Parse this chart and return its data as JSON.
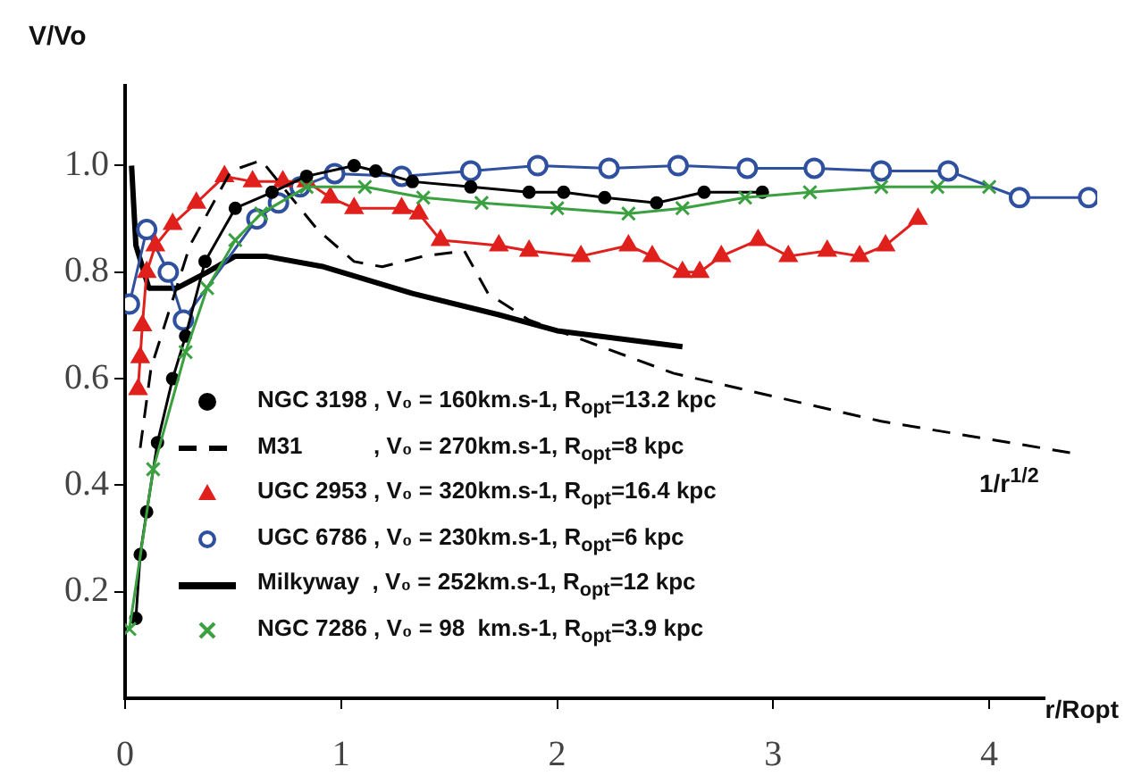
{
  "chart_data": {
    "type": "line",
    "xlabel": "r/Ropt",
    "ylabel": "V/Vo",
    "xlim": [
      0,
      4.5
    ],
    "xticks": [
      0,
      1,
      2,
      3,
      4
    ],
    "ylim": [
      0,
      1.15
    ],
    "yticks": [
      {
        "value": 0.2,
        "label": "0.2"
      },
      {
        "value": 0.4,
        "label": "0.4"
      },
      {
        "value": 0.6,
        "label": "0.6"
      },
      {
        "value": 0.8,
        "label": "0.8"
      },
      {
        "value": 1.0,
        "label": "1.0"
      }
    ],
    "grid": false,
    "legend": "left",
    "annotations": [
      "1/r$^{1/2}$"
    ],
    "series": [
      {
        "name": "NGC 3198 , V₀ = 160km.s-1, R$_{opt}$=13.2 kpc",
        "color": "#000000",
        "marker": "circle",
        "line_style": "solid",
        "x": [
          0.05,
          0.07,
          0.1,
          0.15,
          0.22,
          0.28,
          0.37,
          0.51,
          0.68,
          0.84,
          1.06,
          1.16,
          1.33,
          1.6,
          1.87,
          2.03,
          2.22,
          2.46,
          2.68,
          2.95
        ],
        "values": [
          0.15,
          0.27,
          0.35,
          0.48,
          0.6,
          0.68,
          0.82,
          0.92,
          0.95,
          0.98,
          1.0,
          0.99,
          0.97,
          0.96,
          0.95,
          0.95,
          0.94,
          0.93,
          0.95,
          0.95
        ]
      },
      {
        "name": "M31           , V₀ = 270km.s-1, R$_{opt}$=8 kpc",
        "color": "#000000",
        "marker": "none",
        "line_style": "dashed",
        "x": [
          0.07,
          0.12,
          0.3,
          0.49,
          0.63,
          0.89,
          1.06,
          1.19,
          1.38,
          1.57,
          1.68,
          1.87,
          2.54,
          3.5,
          4.39
        ],
        "values": [
          0.47,
          0.62,
          0.85,
          0.99,
          1.01,
          0.88,
          0.82,
          0.81,
          0.83,
          0.84,
          0.76,
          0.71,
          0.61,
          0.52,
          0.46
        ]
      },
      {
        "name": "UGC 2953 , V₀ = 320km.s-1, R$_{opt}$=16.4 kpc",
        "color": "#e0201c",
        "marker": "triangle",
        "line_style": "solid",
        "x": [
          0.06,
          0.07,
          0.08,
          0.1,
          0.14,
          0.22,
          0.33,
          0.46,
          0.59,
          0.73,
          0.84,
          0.95,
          1.06,
          1.28,
          1.36,
          1.46,
          1.73,
          1.87,
          2.11,
          2.33,
          2.44,
          2.58,
          2.66,
          2.76,
          2.93,
          3.07,
          3.25,
          3.4,
          3.52,
          3.67
        ],
        "values": [
          0.58,
          0.64,
          0.7,
          0.8,
          0.85,
          0.89,
          0.93,
          0.98,
          0.97,
          0.97,
          0.97,
          0.94,
          0.92,
          0.92,
          0.91,
          0.86,
          0.85,
          0.84,
          0.83,
          0.85,
          0.83,
          0.8,
          0.8,
          0.83,
          0.86,
          0.83,
          0.84,
          0.83,
          0.85,
          0.9
        ]
      },
      {
        "name": "UGC 6786 , V₀ = 230km.s-1, R$_{opt}$=6 kpc",
        "color": "#2f4f9f",
        "marker": "circle",
        "line_style": "solid",
        "x": [
          0.02,
          0.1,
          0.2,
          0.27,
          0.61,
          0.71,
          0.81,
          0.97,
          1.28,
          1.6,
          1.91,
          2.24,
          2.56,
          2.88,
          3.19,
          3.5,
          3.81,
          4.14,
          4.46
        ],
        "values": [
          0.74,
          0.88,
          0.8,
          0.71,
          0.9,
          0.93,
          0.96,
          0.985,
          0.98,
          0.99,
          1.0,
          0.995,
          1.0,
          0.995,
          0.995,
          0.99,
          0.99,
          0.94,
          0.94
        ]
      },
      {
        "name": "Milkyway  , V₀ = 252km.s-1, R$_{opt}$=12 kpc",
        "color": "#000000",
        "marker": "none",
        "line_style": "solid",
        "x": [
          0.03,
          0.05,
          0.11,
          0.24,
          0.38,
          0.51,
          0.65,
          0.92,
          1.33,
          1.73,
          2.0,
          2.58
        ],
        "values": [
          1.0,
          0.85,
          0.77,
          0.77,
          0.8,
          0.83,
          0.83,
          0.81,
          0.76,
          0.72,
          0.69,
          0.66
        ]
      },
      {
        "name": "NGC 7286 , V₀ = 98  km.s-1, R$_{opt}$=3.9 kpc",
        "color": "#3aa040",
        "marker": "cross",
        "line_style": "solid",
        "x": [
          0.02,
          0.13,
          0.28,
          0.38,
          0.51,
          0.63,
          0.84,
          1.11,
          1.38,
          1.65,
          2.0,
          2.33,
          2.58,
          2.87,
          3.17,
          3.5,
          3.76,
          4.0
        ],
        "values": [
          0.13,
          0.43,
          0.65,
          0.77,
          0.86,
          0.91,
          0.96,
          0.96,
          0.94,
          0.93,
          0.92,
          0.91,
          0.92,
          0.94,
          0.95,
          0.96,
          0.96,
          0.96
        ]
      }
    ]
  }
}
